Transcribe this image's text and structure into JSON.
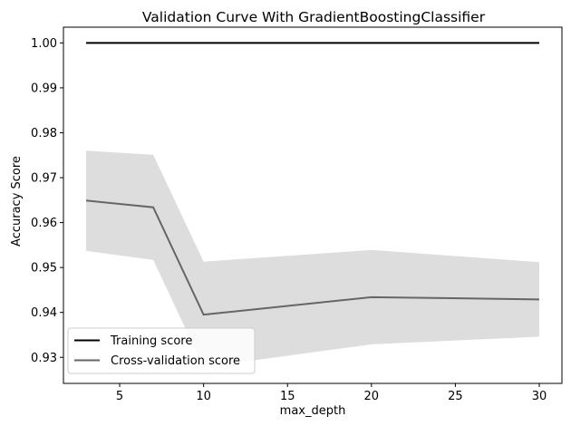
{
  "chart_data": {
    "type": "line",
    "title": "Validation Curve With GradientBoostingClassifier",
    "xlabel": "max_depth",
    "ylabel": "Accuracy Score",
    "x": [
      3,
      7,
      10,
      20,
      30
    ],
    "xticks": [
      5,
      10,
      15,
      20,
      25,
      30
    ],
    "yticks": [
      "0.93",
      "0.94",
      "0.95",
      "0.96",
      "0.97",
      "0.98",
      "0.99",
      "1.00"
    ],
    "xlim": [
      1.65,
      31.35
    ],
    "ylim": [
      0.9242,
      1.0035
    ],
    "grid": false,
    "legend_position": "lower-left",
    "series": [
      {
        "name": "Training score",
        "color": "#000000",
        "values": [
          1.0,
          1.0,
          1.0,
          1.0,
          1.0
        ],
        "band_lower": [
          1.0,
          1.0,
          1.0,
          1.0,
          1.0
        ],
        "band_upper": [
          1.0,
          1.0,
          1.0,
          1.0,
          1.0
        ]
      },
      {
        "name": "Cross-validation score",
        "color": "#666666",
        "values": [
          0.9649,
          0.9634,
          0.9395,
          0.9434,
          0.9429
        ],
        "band_lower": [
          0.9537,
          0.9517,
          0.9278,
          0.9329,
          0.9346
        ],
        "band_upper": [
          0.976,
          0.9751,
          0.9513,
          0.9539,
          0.9512
        ],
        "band_color": "#dddddd"
      }
    ]
  }
}
